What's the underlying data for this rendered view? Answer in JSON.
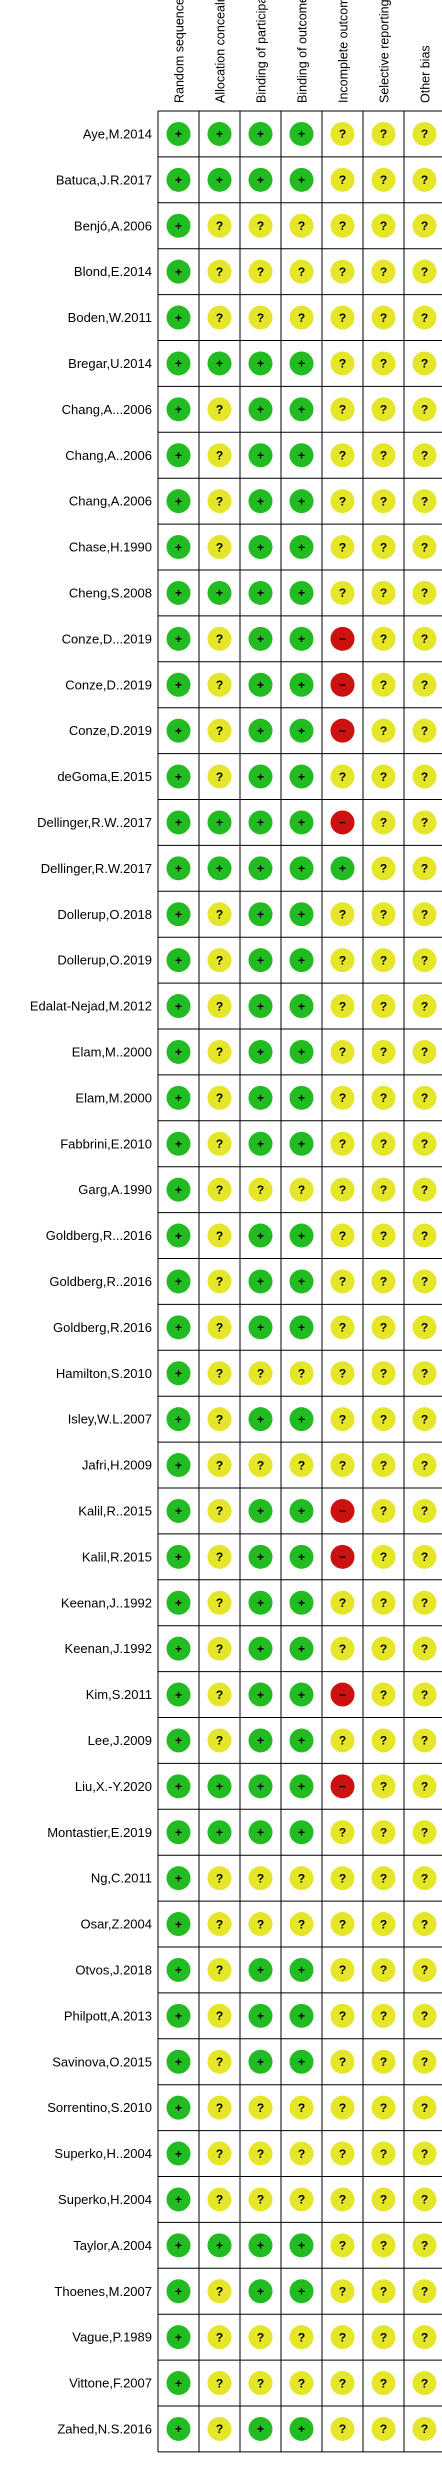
{
  "chart_data": {
    "type": "table",
    "columns": [
      "Random sequence generation (selection bias)",
      "Allocation concealment (selection bias)",
      "Binding of participants and personnel (performance bias)",
      "Binding of outcome assessment (detection bias)",
      "Incomplete outcome data (attrition bias)",
      "Selective reporting (reporting bias)",
      "Other bias"
    ],
    "legend": {
      "+": {
        "symbol": "+",
        "color": "#22bb22"
      },
      "?": {
        "symbol": "?",
        "color": "#e5e52a"
      },
      "-": {
        "symbol": "−",
        "color": "#cc1111"
      }
    },
    "rows": [
      {
        "study": "Aye,M.2014",
        "ratings": [
          "+",
          "+",
          "+",
          "+",
          "?",
          "?",
          "?"
        ]
      },
      {
        "study": "Batuca,J.R.2017",
        "ratings": [
          "+",
          "+",
          "+",
          "+",
          "?",
          "?",
          "?"
        ]
      },
      {
        "study": "Benjó,A.2006",
        "ratings": [
          "+",
          "?",
          "?",
          "?",
          "?",
          "?",
          "?"
        ]
      },
      {
        "study": "Blond,E.2014",
        "ratings": [
          "+",
          "?",
          "?",
          "?",
          "?",
          "?",
          "?"
        ]
      },
      {
        "study": "Boden,W.2011",
        "ratings": [
          "+",
          "?",
          "?",
          "?",
          "?",
          "?",
          "?"
        ]
      },
      {
        "study": "Bregar,U.2014",
        "ratings": [
          "+",
          "+",
          "+",
          "+",
          "?",
          "?",
          "?"
        ]
      },
      {
        "study": "Chang,A...2006",
        "ratings": [
          "+",
          "?",
          "+",
          "+",
          "?",
          "?",
          "?"
        ]
      },
      {
        "study": "Chang,A..2006",
        "ratings": [
          "+",
          "?",
          "+",
          "+",
          "?",
          "?",
          "?"
        ]
      },
      {
        "study": "Chang,A.2006",
        "ratings": [
          "+",
          "?",
          "+",
          "+",
          "?",
          "?",
          "?"
        ]
      },
      {
        "study": "Chase,H.1990",
        "ratings": [
          "+",
          "?",
          "+",
          "+",
          "?",
          "?",
          "?"
        ]
      },
      {
        "study": "Cheng,S.2008",
        "ratings": [
          "+",
          "+",
          "+",
          "+",
          "?",
          "?",
          "?"
        ]
      },
      {
        "study": "Conze,D...2019",
        "ratings": [
          "+",
          "?",
          "+",
          "+",
          "-",
          "?",
          "?"
        ]
      },
      {
        "study": "Conze,D..2019",
        "ratings": [
          "+",
          "?",
          "+",
          "+",
          "-",
          "?",
          "?"
        ]
      },
      {
        "study": "Conze,D.2019",
        "ratings": [
          "+",
          "?",
          "+",
          "+",
          "-",
          "?",
          "?"
        ]
      },
      {
        "study": "deGoma,E.2015",
        "ratings": [
          "+",
          "?",
          "+",
          "+",
          "?",
          "?",
          "?"
        ]
      },
      {
        "study": "Dellinger,R.W..2017",
        "ratings": [
          "+",
          "+",
          "+",
          "+",
          "-",
          "?",
          "?"
        ]
      },
      {
        "study": "Dellinger,R.W.2017",
        "ratings": [
          "+",
          "+",
          "+",
          "+",
          "+",
          "?",
          "?"
        ]
      },
      {
        "study": "Dollerup,O.2018",
        "ratings": [
          "+",
          "?",
          "+",
          "+",
          "?",
          "?",
          "?"
        ]
      },
      {
        "study": "Dollerup,O.2019",
        "ratings": [
          "+",
          "?",
          "+",
          "+",
          "?",
          "?",
          "?"
        ]
      },
      {
        "study": "Edalat-Nejad,M.2012",
        "ratings": [
          "+",
          "?",
          "+",
          "+",
          "?",
          "?",
          "?"
        ]
      },
      {
        "study": "Elam,M..2000",
        "ratings": [
          "+",
          "?",
          "+",
          "+",
          "?",
          "?",
          "?"
        ]
      },
      {
        "study": "Elam,M.2000",
        "ratings": [
          "+",
          "?",
          "+",
          "+",
          "?",
          "?",
          "?"
        ]
      },
      {
        "study": "Fabbrini,E.2010",
        "ratings": [
          "+",
          "?",
          "+",
          "+",
          "?",
          "?",
          "?"
        ]
      },
      {
        "study": "Garg,A.1990",
        "ratings": [
          "+",
          "?",
          "?",
          "?",
          "?",
          "?",
          "?"
        ]
      },
      {
        "study": "Goldberg,R...2016",
        "ratings": [
          "+",
          "?",
          "+",
          "+",
          "?",
          "?",
          "?"
        ]
      },
      {
        "study": "Goldberg,R..2016",
        "ratings": [
          "+",
          "?",
          "+",
          "+",
          "?",
          "?",
          "?"
        ]
      },
      {
        "study": "Goldberg,R.2016",
        "ratings": [
          "+",
          "?",
          "+",
          "+",
          "?",
          "?",
          "?"
        ]
      },
      {
        "study": "Hamilton,S.2010",
        "ratings": [
          "+",
          "?",
          "?",
          "?",
          "?",
          "?",
          "?"
        ]
      },
      {
        "study": "Isley,W.L.2007",
        "ratings": [
          "+",
          "?",
          "+",
          "+",
          "?",
          "?",
          "?"
        ]
      },
      {
        "study": "Jafri,H.2009",
        "ratings": [
          "+",
          "?",
          "?",
          "?",
          "?",
          "?",
          "?"
        ]
      },
      {
        "study": "Kalil,R..2015",
        "ratings": [
          "+",
          "?",
          "+",
          "+",
          "-",
          "?",
          "?"
        ]
      },
      {
        "study": "Kalil,R.2015",
        "ratings": [
          "+",
          "?",
          "+",
          "+",
          "-",
          "?",
          "?"
        ]
      },
      {
        "study": "Keenan,J..1992",
        "ratings": [
          "+",
          "?",
          "+",
          "+",
          "?",
          "?",
          "?"
        ]
      },
      {
        "study": "Keenan,J.1992",
        "ratings": [
          "+",
          "?",
          "+",
          "+",
          "?",
          "?",
          "?"
        ]
      },
      {
        "study": "Kim,S.2011",
        "ratings": [
          "+",
          "?",
          "+",
          "+",
          "-",
          "?",
          "?"
        ]
      },
      {
        "study": "Lee,J.2009",
        "ratings": [
          "+",
          "?",
          "+",
          "+",
          "?",
          "?",
          "?"
        ]
      },
      {
        "study": "Liu,X.-Y.2020",
        "ratings": [
          "+",
          "+",
          "+",
          "+",
          "-",
          "?",
          "?"
        ]
      },
      {
        "study": "Montastier,E.2019",
        "ratings": [
          "+",
          "+",
          "+",
          "+",
          "?",
          "?",
          "?"
        ]
      },
      {
        "study": "Ng,C.2011",
        "ratings": [
          "+",
          "?",
          "?",
          "?",
          "?",
          "?",
          "?"
        ]
      },
      {
        "study": "Osar,Z.2004",
        "ratings": [
          "+",
          "?",
          "?",
          "?",
          "?",
          "?",
          "?"
        ]
      },
      {
        "study": "Otvos,J.2018",
        "ratings": [
          "+",
          "?",
          "+",
          "+",
          "?",
          "?",
          "?"
        ]
      },
      {
        "study": "Philpott,A.2013",
        "ratings": [
          "+",
          "?",
          "+",
          "+",
          "?",
          "?",
          "?"
        ]
      },
      {
        "study": "Savinova,O.2015",
        "ratings": [
          "+",
          "?",
          "+",
          "+",
          "?",
          "?",
          "?"
        ]
      },
      {
        "study": "Sorrentino,S.2010",
        "ratings": [
          "+",
          "?",
          "?",
          "?",
          "?",
          "?",
          "?"
        ]
      },
      {
        "study": "Superko,H..2004",
        "ratings": [
          "+",
          "?",
          "?",
          "?",
          "?",
          "?",
          "?"
        ]
      },
      {
        "study": "Superko,H.2004",
        "ratings": [
          "+",
          "?",
          "?",
          "?",
          "?",
          "?",
          "?"
        ]
      },
      {
        "study": "Taylor,A.2004",
        "ratings": [
          "+",
          "+",
          "+",
          "+",
          "?",
          "?",
          "?"
        ]
      },
      {
        "study": "Thoenes,M.2007",
        "ratings": [
          "+",
          "?",
          "+",
          "+",
          "?",
          "?",
          "?"
        ]
      },
      {
        "study": "Vague,P.1989",
        "ratings": [
          "+",
          "?",
          "?",
          "?",
          "?",
          "?",
          "?"
        ]
      },
      {
        "study": "Vittone,F.2007",
        "ratings": [
          "+",
          "?",
          "?",
          "?",
          "?",
          "?",
          "?"
        ]
      },
      {
        "study": "Zahed,N.S.2016",
        "ratings": [
          "+",
          "?",
          "+",
          "+",
          "?",
          "?",
          "?"
        ]
      }
    ]
  }
}
